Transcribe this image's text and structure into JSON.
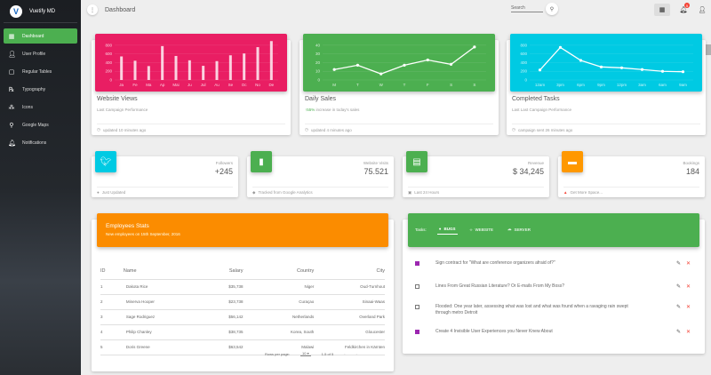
{
  "sidebar": {
    "brand": "Vuetify MD",
    "items": [
      {
        "label": "Dashboard",
        "icon": "dashboard-icon",
        "active": true
      },
      {
        "label": "User Profile",
        "icon": "person-icon"
      },
      {
        "label": "Regular Tables",
        "icon": "clipboard-icon"
      },
      {
        "label": "Typography",
        "icon": "text-icon"
      },
      {
        "label": "Icons",
        "icon": "bubble-icon"
      },
      {
        "label": "Google Maps",
        "icon": "map-marker-icon"
      },
      {
        "label": "Notifications",
        "icon": "bell-icon"
      }
    ]
  },
  "header": {
    "title": "Dashboard",
    "search_placeholder": "Search",
    "notification_count": "5"
  },
  "charts": [
    {
      "title": "Website Views",
      "subtitle": "Last Campaign Performance",
      "footer": "updated 10 minutes ago",
      "color": "#e91e63"
    },
    {
      "title": "Daily Sales",
      "subtitle_highlight": "55%",
      "subtitle": " increase in today's sales",
      "footer": "updated 4 minutes ago",
      "color": "#4caf50"
    },
    {
      "title": "Completed Tasks",
      "subtitle": "Last Last Campaign Performance",
      "footer": "campaign sent 26 minutes ago",
      "color": "#00cae3"
    }
  ],
  "chart_data": [
    {
      "type": "bar",
      "categories": [
        "Ja",
        "Fe",
        "Ma",
        "Ap",
        "Mai",
        "Ju",
        "Jul",
        "Au",
        "Se",
        "Oc",
        "No",
        "De"
      ],
      "values": [
        542,
        443,
        320,
        780,
        553,
        453,
        326,
        434,
        568,
        610,
        756,
        895
      ],
      "ylim": [
        0,
        900
      ],
      "yticks": [
        0,
        200,
        400,
        600,
        800
      ],
      "grid": true
    },
    {
      "type": "line",
      "categories": [
        "M",
        "T",
        "W",
        "T",
        "F",
        "S",
        "S"
      ],
      "values": [
        12,
        17,
        7,
        17,
        23,
        18,
        38
      ],
      "ylim": [
        0,
        45
      ],
      "yticks": [
        0,
        10,
        20,
        30,
        40
      ],
      "grid": true
    },
    {
      "type": "line",
      "categories": [
        "12am",
        "3pm",
        "6pm",
        "9pm",
        "12pm",
        "3am",
        "6am",
        "9am"
      ],
      "values": [
        230,
        750,
        450,
        300,
        280,
        240,
        200,
        190
      ],
      "ylim": [
        0,
        900
      ],
      "yticks": [
        0,
        200,
        400,
        600,
        800
      ],
      "grid": true
    }
  ],
  "stats": [
    {
      "label": "Followers",
      "value": "+245",
      "footer": "Just Updated",
      "icon": "twitter-icon",
      "footer_icon": "info-icon",
      "color": "#00cae3"
    },
    {
      "label": "Website Visits",
      "value": "75.521",
      "footer": "Tracked from Google Analytics",
      "icon": "bar-chart-icon",
      "footer_icon": "tag-icon",
      "color": "#4caf50"
    },
    {
      "label": "Revenue",
      "value": "$ 34,245",
      "footer": "Last 24 Hours",
      "icon": "store-icon",
      "footer_icon": "calendar-icon",
      "color": "#4caf50"
    },
    {
      "label": "Bookings",
      "value": "184",
      "footer": "Get More Space...",
      "icon": "sofa-icon",
      "footer_icon": "warning-icon",
      "color": "#ff9800"
    }
  ],
  "employees": {
    "title": "Employees Stats",
    "subtitle": "New employees on 15th September, 2016",
    "columns": [
      "ID",
      "Name",
      "Salary",
      "Country",
      "City"
    ],
    "rows": [
      [
        "1",
        "Dakota Rice",
        "$35,738",
        "Niger",
        "Oud-Turnhout"
      ],
      [
        "2",
        "Minerva Hooper",
        "$23,738",
        "Curaçao",
        "Sinaai-Waas"
      ],
      [
        "3",
        "Sage Rodriguez",
        "$56,142",
        "Netherlands",
        "Overland Park"
      ],
      [
        "4",
        "Philip Chanley",
        "$38,735",
        "Korea, South",
        "Gloucester"
      ],
      [
        "5",
        "Doris Greene",
        "$63,542",
        "Malawi",
        "Feldkirchen in Kärnten"
      ]
    ],
    "rows_per_page_label": "Rows per page:",
    "rows_per_page": "10",
    "range": "1-5 of 5"
  },
  "tasks": {
    "label": "Tasks:",
    "tabs": [
      {
        "label": "BUGS",
        "icon": "bug-icon",
        "active": true
      },
      {
        "label": "WEBSITE",
        "icon": "code-icon"
      },
      {
        "label": "SERVER",
        "icon": "cloud-icon"
      }
    ],
    "items": [
      {
        "text": "Sign contract for \"What are conference organizers afraid of?\"",
        "done": true
      },
      {
        "text": "Lines From Great Russian Literature? Or E-mails From My Boss?",
        "done": false
      },
      {
        "text": "Flooded: One year later, assessing what was lost and what was found when a ravaging rain swept through metro Detroit",
        "done": false
      },
      {
        "text": "Create 4 Invisible User Experiences you Never Knew About",
        "done": true
      }
    ]
  }
}
